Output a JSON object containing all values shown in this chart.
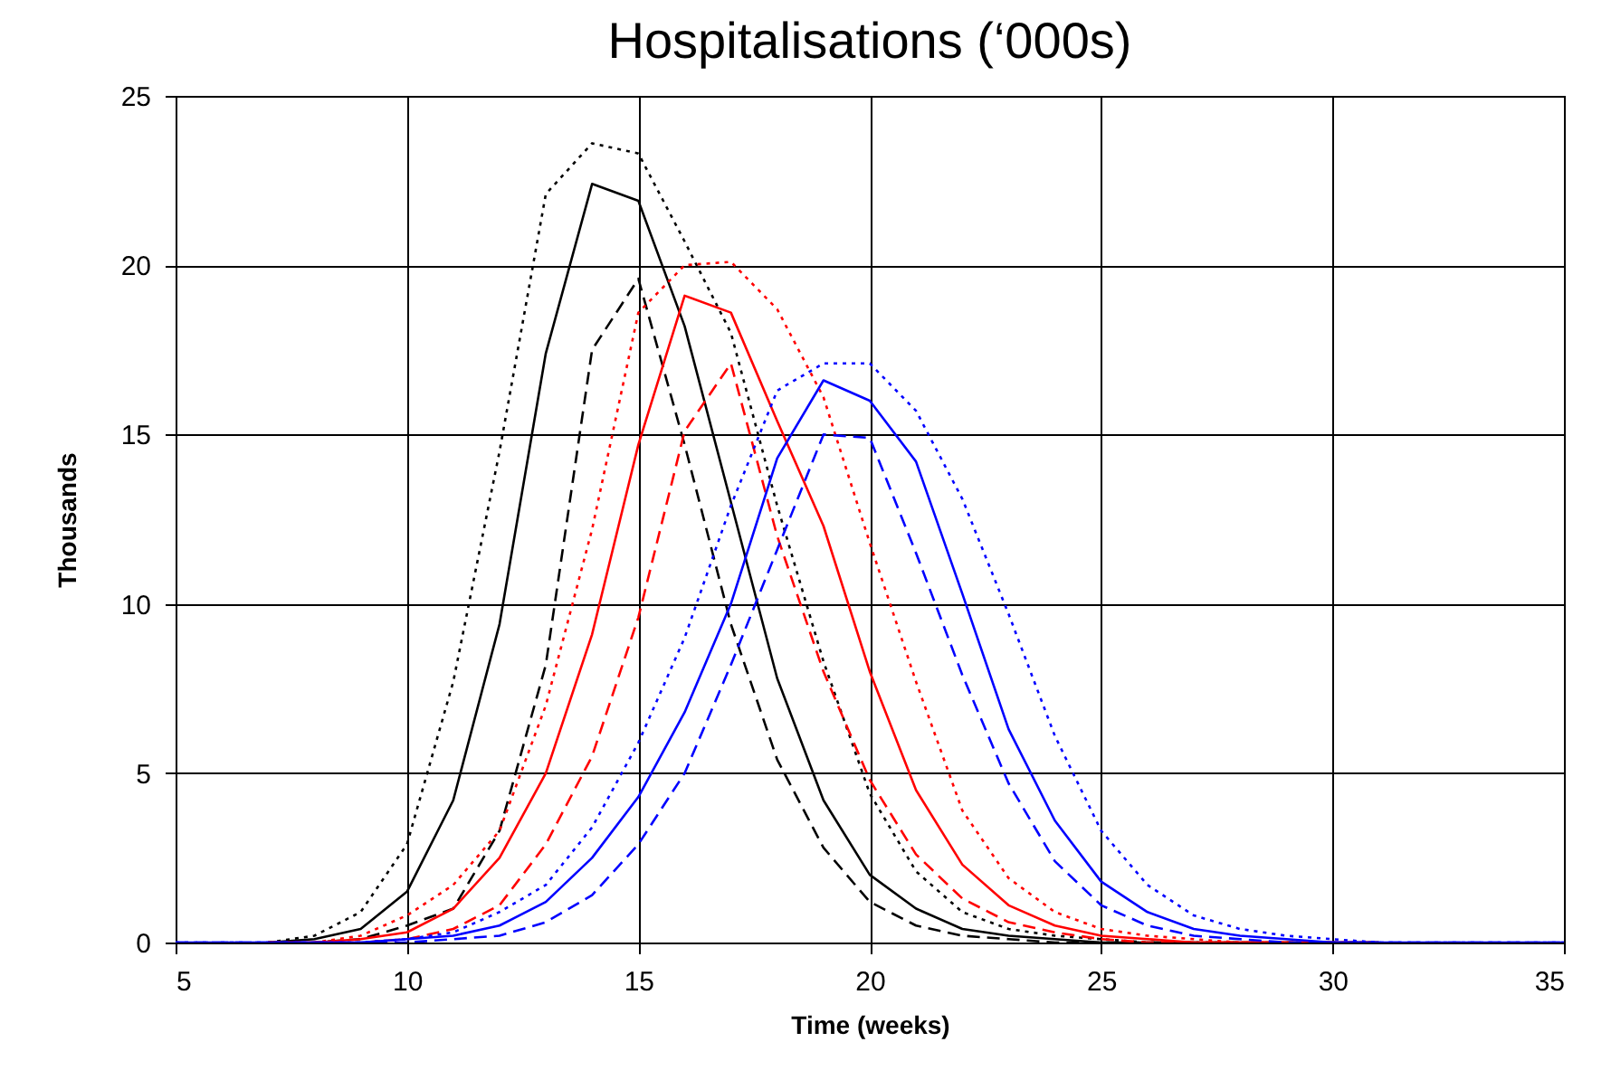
{
  "chart_data": {
    "type": "line",
    "title": "Hospitalisations (‘000s)",
    "xlabel": "Time (weeks)",
    "ylabel": "Thousands",
    "x": [
      5,
      6,
      7,
      8,
      9,
      10,
      11,
      12,
      13,
      14,
      15,
      16,
      17,
      18,
      19,
      20,
      21,
      22,
      23,
      24,
      25,
      26,
      27,
      28,
      29,
      30,
      31,
      32,
      33,
      34,
      35
    ],
    "xlim": [
      5,
      35
    ],
    "xticks": [
      5,
      10,
      15,
      20,
      25,
      30,
      35
    ],
    "ylim": [
      0,
      25
    ],
    "yticks": [
      0,
      5,
      10,
      15,
      20,
      25
    ],
    "grid": true,
    "series": [
      {
        "color": "#000000",
        "line_style": "solid",
        "values": [
          null,
          null,
          0,
          0.1,
          0.4,
          1.5,
          4.2,
          9.4,
          17.4,
          22.4,
          21.9,
          18.2,
          13.0,
          7.8,
          4.2,
          2.0,
          1.0,
          0.4,
          0.2,
          0.1,
          0,
          0,
          0,
          0,
          0,
          0,
          0,
          null,
          null,
          null,
          null
        ]
      },
      {
        "color": "#000000",
        "line_style": "dotted",
        "values": [
          null,
          null,
          0,
          0.2,
          0.9,
          2.9,
          7.7,
          14.5,
          22.1,
          23.6,
          23.3,
          20.7,
          18.0,
          12.9,
          8.3,
          4.4,
          2.1,
          0.9,
          0.4,
          0.2,
          0.1,
          0,
          0,
          0,
          0,
          0,
          0,
          null,
          null,
          null,
          null
        ]
      },
      {
        "color": "#000000",
        "line_style": "dashed",
        "values": [
          null,
          null,
          0,
          0,
          0.1,
          0.5,
          1.0,
          3.3,
          8.2,
          17.5,
          19.6,
          14.7,
          9.4,
          5.4,
          2.8,
          1.2,
          0.5,
          0.2,
          0.1,
          0,
          0,
          0,
          0,
          0,
          0,
          0,
          0,
          null,
          null,
          null,
          null
        ]
      },
      {
        "color": "#ff0000",
        "line_style": "solid",
        "values": [
          null,
          null,
          0,
          0,
          0.1,
          0.3,
          1.0,
          2.5,
          5.0,
          9.1,
          14.7,
          19.1,
          18.6,
          15.4,
          12.3,
          8.0,
          4.5,
          2.3,
          1.1,
          0.5,
          0.2,
          0.1,
          0,
          0,
          0,
          0,
          0,
          null,
          null,
          null,
          null
        ]
      },
      {
        "color": "#ff0000",
        "line_style": "dotted",
        "values": [
          null,
          null,
          0,
          0,
          0.2,
          0.8,
          1.7,
          3.3,
          7.0,
          12.2,
          18.6,
          20.0,
          20.1,
          18.7,
          16.1,
          11.8,
          7.7,
          3.9,
          1.9,
          0.9,
          0.4,
          0.2,
          0.1,
          0,
          0,
          0,
          0,
          null,
          null,
          null,
          null
        ]
      },
      {
        "color": "#ff0000",
        "line_style": "dashed",
        "values": [
          null,
          null,
          0,
          0,
          0,
          0.1,
          0.4,
          1.1,
          2.9,
          5.5,
          9.6,
          15.1,
          17.1,
          12.0,
          8.0,
          4.8,
          2.6,
          1.3,
          0.6,
          0.3,
          0.1,
          0,
          0,
          0,
          0,
          0,
          0,
          null,
          null,
          null,
          null
        ]
      },
      {
        "color": "#0000ff",
        "line_style": "solid",
        "values": [
          0,
          0,
          0,
          0,
          0,
          0.1,
          0.2,
          0.5,
          1.2,
          2.5,
          4.3,
          6.8,
          10.0,
          14.3,
          16.6,
          16.0,
          14.2,
          10.3,
          6.3,
          3.6,
          1.8,
          0.9,
          0.4,
          0.2,
          0.1,
          0,
          0,
          0,
          0,
          0,
          0
        ]
      },
      {
        "color": "#0000ff",
        "line_style": "dotted",
        "values": [
          0,
          0,
          0,
          0,
          0,
          0.1,
          0.3,
          0.9,
          1.7,
          3.4,
          5.9,
          9.0,
          12.9,
          16.3,
          17.1,
          17.1,
          15.7,
          13.1,
          9.7,
          6.1,
          3.3,
          1.7,
          0.8,
          0.4,
          0.2,
          0.1,
          0,
          0,
          0,
          0,
          0
        ]
      },
      {
        "color": "#0000ff",
        "line_style": "dashed",
        "values": [
          0,
          0,
          0,
          0,
          0,
          0,
          0.1,
          0.2,
          0.6,
          1.4,
          2.9,
          5.0,
          8.2,
          11.6,
          15.0,
          14.9,
          11.5,
          7.9,
          4.7,
          2.4,
          1.1,
          0.5,
          0.2,
          0.1,
          0,
          0,
          0,
          0,
          0,
          0,
          0
        ]
      }
    ]
  }
}
